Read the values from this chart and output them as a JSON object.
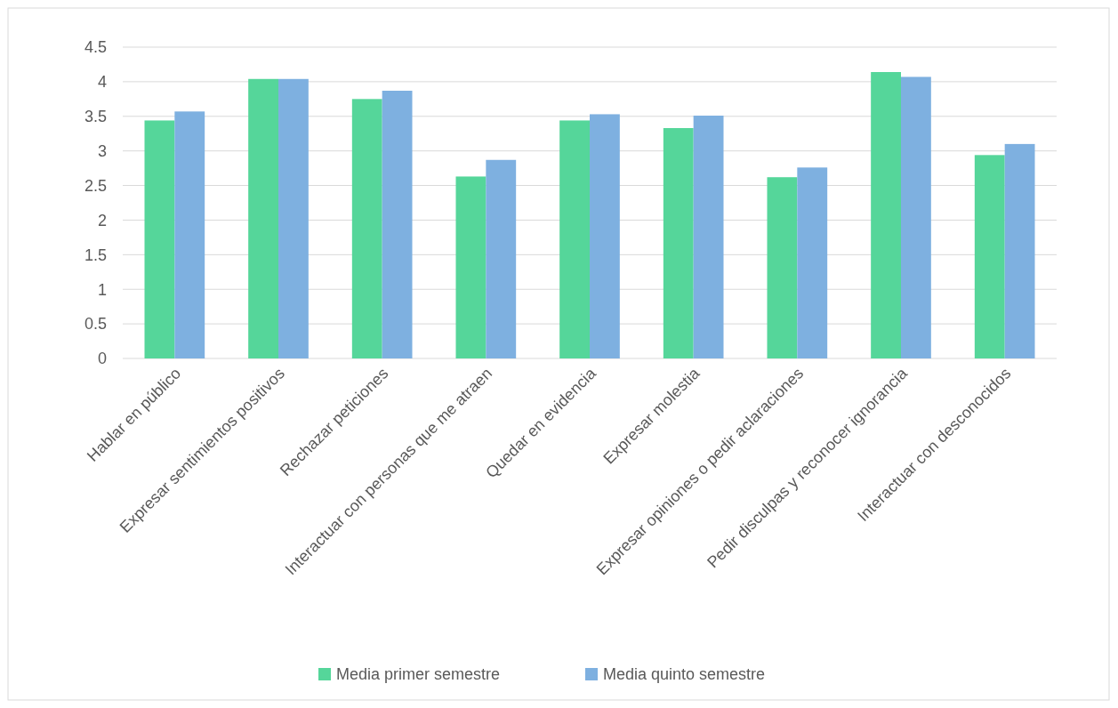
{
  "chart_data": {
    "type": "bar",
    "categories": [
      "Hablar en público",
      "Expresar sentimientos positivos",
      "Rechazar peticiones",
      "Interactuar con personas que me atraen",
      "Quedar en evidencia",
      "Expresar molestia",
      "Expresar opiniones o pedir aclaraciones",
      "Pedir disculpas y reconocer ignorancia",
      "Interactuar con desconocidos"
    ],
    "series": [
      {
        "name": "Media primer semestre",
        "color": "#55d69a",
        "values": [
          3.44,
          4.04,
          3.75,
          2.63,
          3.44,
          3.33,
          2.62,
          4.14,
          2.94
        ]
      },
      {
        "name": "Media quinto semestre",
        "color": "#7eb0e0",
        "values": [
          3.57,
          4.04,
          3.87,
          2.87,
          3.53,
          3.51,
          2.76,
          4.07,
          3.1
        ]
      }
    ],
    "ylim": [
      0,
      4.5
    ],
    "yticks": [
      0,
      0.5,
      1,
      1.5,
      2,
      2.5,
      3,
      3.5,
      4,
      4.5
    ],
    "grid": "y",
    "legend": "bottom"
  }
}
